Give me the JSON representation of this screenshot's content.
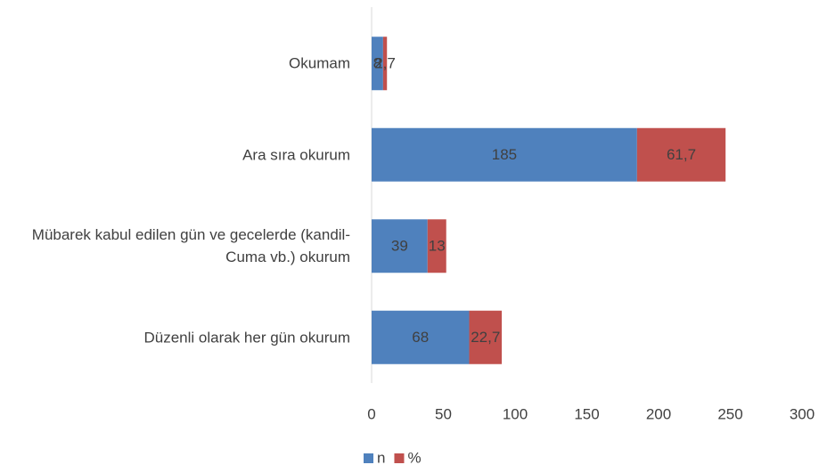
{
  "chart_data": {
    "type": "stacked_barh",
    "categories": [
      "Okumam",
      "Ara sıra okurum",
      "Mübarek kabul edilen gün ve gecelerde (kandil-Cuma vb.) okurum",
      "Düzenli olarak her gün okurum"
    ],
    "series": [
      {
        "name": "n",
        "color": "#4f81bd",
        "values": [
          8,
          185,
          39,
          68
        ]
      },
      {
        "name": "%",
        "color": "#c0504d",
        "values": [
          2.7,
          61.7,
          13,
          22.7
        ],
        "value_labels": [
          "2,7",
          "61,7",
          "13",
          "22,7"
        ]
      }
    ],
    "xlim": [
      0,
      300
    ],
    "xticks": [
      0,
      50,
      100,
      150,
      200,
      250,
      300
    ],
    "legend": "bottom"
  }
}
